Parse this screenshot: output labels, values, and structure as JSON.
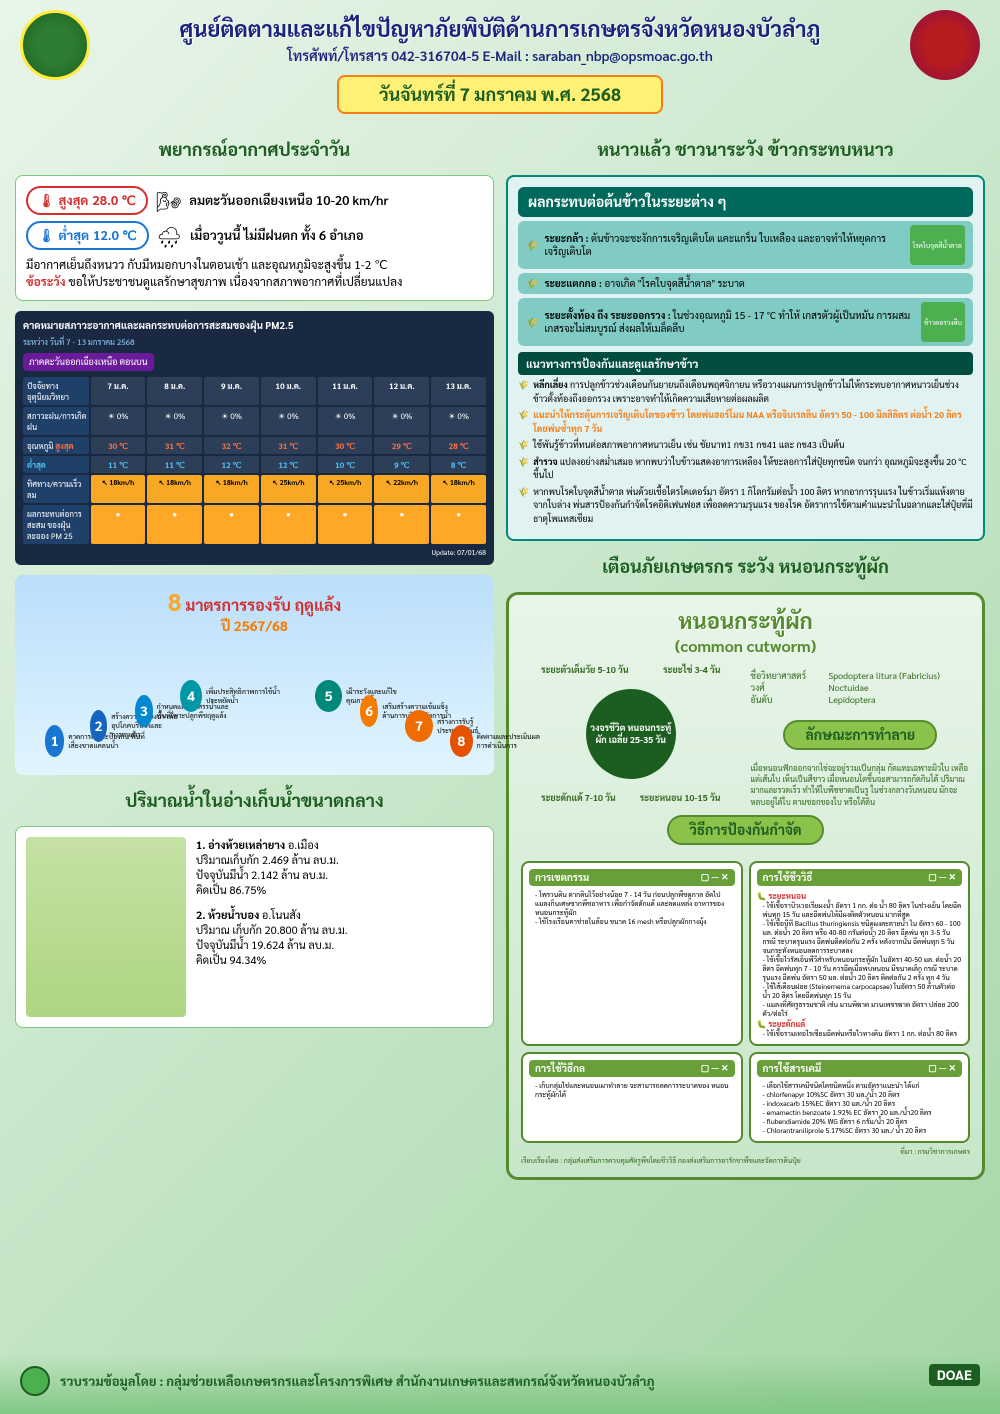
{
  "header": {
    "title": "ศูนย์ติดตามและแก้ไขปัญหาภัยพิบัติด้านการเกษตรจังหวัดหนองบัวลำภู",
    "contact": "โทรศัพท์/โทรสาร 042-316704-5  E-Mail : saraban_nbp@opsmoac.go.th",
    "date": "วันจันทร์ที่ 7 มกราคม พ.ศ. 2568"
  },
  "weather": {
    "section": "พยากรณ์อากาศประจำวัน",
    "hi_label": "สูงสุด",
    "hi_val": "28.0 ℃",
    "lo_label": "ต่ำสุด",
    "lo_val": "12.0 ℃",
    "wind": "ลมตะวันออกเฉียงเหนือ 10-20 km/hr",
    "rain": "เมื่อววูนนี้ ไม่มีฝนตก ทั้ง 6 อำเภอ",
    "note1": "มีอากาศเย็นถึงหนวว กับมีหมอกบางในตอนเช้า และอุณหภูมิจะสูงขึ้น 1-2 ℃",
    "warn_lbl": "ข้อระวัง",
    "warn_txt": "ขอให้ประชาชนดูแลรักษาสุขภาพ เนื่องจากสภาพอากาศที่เปลี่ยนแปลง"
  },
  "forecast": {
    "hdr": "คาดหมายสภาวะอากาศและผลกระทบต่อการสะสมของฝุ่น PM2.5",
    "range": "ระหว่าง วันที่ 7 - 13 มกราคม 2568",
    "region": "ภาคตะวันออกเฉียงเหนือ ตอนบน",
    "cols": [
      "7 ม.ค.",
      "8 ม.ค.",
      "9 ม.ค.",
      "10 ม.ค.",
      "11 ม.ค.",
      "12 ม.ค.",
      "13 ม.ค."
    ],
    "rows": [
      {
        "lbl": "ปัจจัยทางอุตุนิยมวิทยา",
        "vals": [
          "",
          "",
          "",
          "",
          "",
          "",
          ""
        ]
      },
      {
        "lbl": "สภาวะฝน/การเกิดฝน",
        "vals": [
          "0%",
          "0%",
          "0%",
          "0%",
          "0%",
          "0%",
          "0%"
        ]
      }
    ],
    "temp_lbl": "อุณหภูมิ",
    "hi": [
      "30 ℃",
      "31 ℃",
      "32 ℃",
      "31 ℃",
      "30 ℃",
      "29 ℃",
      "28 ℃"
    ],
    "lo": [
      "11 ℃",
      "11 ℃",
      "12 ℃",
      "12 ℃",
      "10 ℃",
      "9 ℃",
      "8 ℃"
    ],
    "wind_lbl": "ทิศทาง/ความเร็วลม",
    "wind": [
      "18km/h",
      "18km/h",
      "18km/h",
      "25km/h",
      "25km/h",
      "22km/h",
      "18km/h"
    ],
    "pm_lbl": "ผลกระทบต่อการสะสม ของฝุ่นละออง PM 25",
    "update": "Update: 07/01/68"
  },
  "drought": {
    "num": "8",
    "title": "มาตรการรองรับ ฤดูแล้ง",
    "year": "ปี 2567/68",
    "items": [
      {
        "n": "1",
        "c": "#1976d2",
        "t": "คาดการณ์และป้องกัน พื้นที่เสี่ยงขาดแคลนน้ำ"
      },
      {
        "n": "2",
        "c": "#1565c0",
        "t": "สร้างความมั่นคงน้ำ เพื่ออุปโภคบริโภคและการเกษตร"
      },
      {
        "n": "3",
        "c": "#0288d1",
        "t": "กำหนดแผนจัดสรรน้ำและพื้นที่เพาะปลูกพืชฤดูแล้ง"
      },
      {
        "n": "4",
        "c": "#0097a7",
        "t": "เพิ่มประสิทธิภาพการใช้น้ำ ประหยัดน้ำ"
      },
      {
        "n": "5",
        "c": "#00897b",
        "t": "เฝ้าระวังและแก้ไขคุณภาพน้ำ"
      },
      {
        "n": "6",
        "c": "#f57c00",
        "t": "เสริมสร้างความเข้มแข็ง ด้านการบริหารจัดการน้ำ"
      },
      {
        "n": "7",
        "c": "#ef6c00",
        "t": "สร้างการรับรู้ประชาสัมพันธ์"
      },
      {
        "n": "8",
        "c": "#e65100",
        "t": "ติดตามและประเมินผลการดำเนินการ"
      }
    ]
  },
  "reservoir": {
    "section": "ปริมาณน้ำในอ่างเก็บน้ำขนาดกลาง",
    "items": [
      {
        "name": "1. อ่างห้วยเหล่ายาง",
        "loc": "อ.เมือง",
        "cap": "ปริมาณเก็บกัก 2.469 ล้าน ลบ.ม.",
        "cur": "ปัจจุบันมีน้ำ 2.142 ล้าน ลบ.ม.",
        "pct": "คิดเป็น 86.75%"
      },
      {
        "name": "2. ห้วยน้ำบอง",
        "loc": "อ.โนนสัง",
        "cap": "ปริมาณ เก็บกัก 20.800 ล้าน ลบ.ม.",
        "cur": "ปัจจุบันมีน้ำ 19.624 ล้าน ลบ.ม.",
        "pct": "คิดเป็น 94.34%"
      }
    ]
  },
  "rice": {
    "section": "หนาวแล้ว ชาวนาระวัง ข้าวกระทบหนาว",
    "hdr": "ผลกระทบต่อต้นข้าวในระยะต่าง ๆ",
    "stages": [
      {
        "lbl": "ระยะกล้า :",
        "txt": "ต้นข้าวจะชะงักการเจริญเติบโต แคะแกร็น ใบเหลือง และอาจทำให้หยุดการเจริญเติบโต",
        "img": "โรคใบจุดสีน้ำตาล"
      },
      {
        "lbl": "ระยะแตกกอ :",
        "txt": "อาจเกิด \"โรคใบจุดสีน้ำตาล\" ระบาด",
        "img": ""
      },
      {
        "lbl": "ระยะตั้งท้อง ถึง ระยะออกรวง :",
        "txt": "ในช่วงอุณหภูมิ 15 - 17 °C ทำให้ เกสรตัวผู้เป็นหมัน การผสมเกสรจะไม่สมบูรณ์ ส่งผลให้เมล็ดลีบ",
        "img": "ข้าวดอรวงลีบ"
      }
    ],
    "guide_hdr": "แนวทางการป้องกันและดูแลรักษาข้าว",
    "tips": [
      {
        "b": "หลีกเลี่ยง",
        "t": "การปลูกข้าวช่วงเดือนกันยายนถึงเดือนพฤศจิกายน หรือวางแผนการปลูกข้าวไม่ให้กระทบอากาศหนาวเย็นช่วงข้าวตั้งท้องถึงออกรวง เพราะอาจทำให้เกิดความเสียหายต่อผลผลิต"
      },
      {
        "y": true,
        "t": "แนะนำให้กระตุ้นการเจริญเติบโตของข้าว โดยพ่นฮอร์โมน NAA หรือจิบเรลลิน อัตรา 50 - 100 มิลลิลิตร ต่อน้ำ 20 ลิตร โดยพ่นซ้ำทุก 7 วัน"
      },
      {
        "b": "",
        "t": "ใช้พันรู้ข้าวที่ทนต่อสภาพอากาศหนาวเย็น เช่น ชัยนาท1 กข31 กข41 และ กข43 เป็นต้น"
      },
      {
        "b": "สำรวจ",
        "t": "แปลงอย่างสม่ำเสมอ หากพบว่าใบข้าวแสดงอาการเหลือง ให้ชะลอการใส่ปุ๋ยทุกชนิด จนกว่า อุณหภูมิจะสูงขึ้น 20 °C ขึ้นไป"
      },
      {
        "b": "",
        "t": "หากพบโรคใบจุดสีน้ำตาล พ่นด้วยเชื้อไตรโคเดอร์มา อัตรา 1 กิโลกรัมต่อน้ำ 100 ลิตร หากอาการรุนแรง ในข้าวเริ่มแห้งตายจากใบล่าง พ่นสารป้องกันกำจัดโรคอิดิเฟนฟอส เพื่อลดความรุนแรง ของโรค อัตราการใช้ตามคำแนะนำในฉลากและใส่ปุ๋ยที่มีธาตุโพแทสเซียม"
      }
    ]
  },
  "worm": {
    "section": "เตือนภัยเกษตรกร ระวัง หนอนกระทู้ผัก",
    "title": "หนอนกระทู้ผัก",
    "sub": "(common cutworm)",
    "cycle_center": "วงจรชีวิต หนอนกระทู้ผัก เฉลี่ย 25-35 วัน",
    "stages": [
      {
        "t": "ระยะตัวเต็มวัย 5-10 วัน",
        "p": "top:0;left:20px"
      },
      {
        "t": "ระยะไข่ 3-4 วัน",
        "p": "top:0;right:20px"
      },
      {
        "t": "ระยะดักแด้ 7-10 วัน",
        "p": "bottom:0;left:20px"
      },
      {
        "t": "ระยะหนอน 10-15 วัน",
        "p": "bottom:0;right:20px"
      }
    ],
    "sci": [
      {
        "k": "ชื่อวิทยาศาสตร์",
        "v": "Spodoptera litura (Fabricius)"
      },
      {
        "k": "วงศ์",
        "v": "Noctuidae"
      },
      {
        "k": "อันดับ",
        "v": "Lepidoptera"
      }
    ],
    "damage_hdr": "ลักษณะการทำลาย",
    "damage": "เมื่อหนอนฟักออกจากไข่จะอยู่รวมเป็นกลุ่ม กัดแทะเฉพาะผิวใบ เหลือแต่เส้นใบ เห็นเป็นสีขาว เมื่อหนอนโตขึ้นจะสามารถกัดกินได้ ปริมาณมากและรวดเร็ว ทำให้ใบพืชขาดเป็นรู ในช่วงกลางวันหนอน มักจะหลบอยู่ใต้ใบ ตามซอกของใบ หรือใต้ดิน",
    "prevent_hdr": "วิธีการป้องกันกำจัด",
    "ctrl": [
      {
        "h": "การเขตกรรม",
        "items": [
          "โพรวนดิน ตากดินไว้อย่างน้อย 7 - 14 วัน ก่อนปลูกพืชดูภาล อัดไป แมลงก็นเศษซากพืชอาหาร เพื่อกำจัดดักแด้ และลดแหล่ง อาหารของหนอนกระทู้ผัก",
          "ใช้โรงเรือนคาข่ายในล้อน ขนาด 16 mesh หรือปลูกผักกางมุ้ง"
        ]
      },
      {
        "h": "การใช้ชีววิธี",
        "stage": "ระยะหนอน",
        "items": [
          "ใช้เชื้อราบิวเวอเรียผงน้ำ อัตรา 1 กก. ต่อ น้ำ 80 ลิตร ในช่วงเย็น โดยฉีดพ่นทุก 15 วัน และฉีดพ่นให้มีผงติดตัวหนอน มากที่สุด",
          "ใช้เชื้อบีที Bacillus thuringiensis ชนิดผงละลายน้ำ ใน อัตรา 60 - 100 มล. ต่อน้ำ 20 ลิตร หรือ 40-80 กรัมต่อน้ำ 20 ลิตร ฉีดพ่น ทุก 3-5 วัน กรณี ระบาดรุนแรง ฉีดพ่นติดต่อกัน 2 ครั้ง หลังจากนั้น ฉีดพ่นทุก 5 วัน จนกระทั่งหนอนลดการระบาดลง",
          "ใช้เชื้อไวรัสเอ็นพีวีสำหรับหนอนกระทู้ผัก ในอัตรา 40-50 มล. ต่อน้ำ 20 ลิตร ฉีดพ่นทุก 7 - 10 วัน ควรฉีดเมื่อพบหนอน มีขนาดเล็ก กรณี ระบาดรุนแรง ฉีดพ่น อัตรา 50 มล. ต่อน้ำ 20 ลิตร ติดต่อกัน 2 ครั้ง ทุก 4 วัน",
          "ใช้ไส้เดือนฝอย (Steinernema carpocapsae) ในอัตรา 50 ล้านตัวต่อน้ำ 20 ลิตร โดยฉีดพ่นทุก 15 วัน",
          "แมลงที่ศัตรูธรรมชาติ เช่น มวนพิฆาต มวนเพชรฆาต อัตรา ปล่อย 200 ตัว/ต่อไร่"
        ],
        "stage2": "ระยะดักแด้",
        "items2": [
          "ใช้เชื้อรามเทอไรเซียมฉีดพ่นหรือไวทางดิน อัตรา 1 กก. ต่อน้ำ 80 ลิตร"
        ]
      },
      {
        "h": "การใช้วิธีกล",
        "items": [
          "เก็บกลุ่มไข่และหนอนเผาทำลาย จะสามารถลดการระบาดของ หนอนกระทู้ผักได้"
        ]
      },
      {
        "h": "การใช้สารเคมี",
        "items": [
          "เลือกใช้สารเคมีชนิดใดชนิดหนึ่ง ตามอัตราแนะนำ ได้แก่",
          "chlorfenapyr 10%SC อัตรา 30 มล./น้ำ 20 ลิตร",
          "indoxacarb 15%EC อัตรา 30 มล./น้ำ 20 ลิตร",
          "emamectin benzoate 1.92% EC อัตรา 20 มล./น้ำ20 ลิตร",
          "flubendiamide 20% WG อัตรา 6 กรัม/น้ำ 20 ลิตร",
          "Chlorantraniliprole 5.17%SC อัตรา 30 มล./ น้ำ 20 ลิตร"
        ]
      }
    ],
    "credit": "ที่มา : กรมวิชาการเกษตร",
    "compiled": "เรียบเรียงโดย : กลุ่มส่งเสริมการควบคุมศัตรูพืชโดยชีววิธี กองส่งเสริมการอารักขาพืชและจัดการดินปุ๋ย"
  },
  "footer": {
    "text": "รวบรวมข้อมูลโดย : กลุ่มช่วยเหลือเกษตรกรและโครงการพิเศษ สำนักงานเกษตรและสหกรณ์จังหวัดหนองบัวลำภู",
    "doae": "DOAE"
  },
  "colors": {
    "green_dk": "#1b5e20",
    "green": "#4caf50",
    "navy": "#1a237e",
    "red": "#d32f2f",
    "blue": "#1976d2",
    "teal": "#00695c",
    "orange": "#f57c00"
  }
}
